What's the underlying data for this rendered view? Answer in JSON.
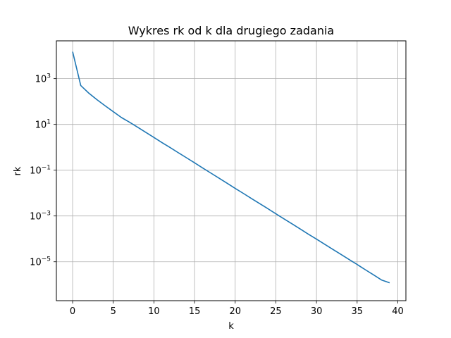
{
  "chart_data": {
    "type": "line",
    "title": "Wykres rk od k dla drugiego zadania",
    "xlabel": "k",
    "ylabel": "rk",
    "x_scale": "linear",
    "y_scale": "log",
    "grid": true,
    "xlim": [
      -2,
      41
    ],
    "ylim_log10": [
      -6.7,
      4.65
    ],
    "x_ticks": [
      {
        "value": 0,
        "label": "0"
      },
      {
        "value": 5,
        "label": "5"
      },
      {
        "value": 10,
        "label": "10"
      },
      {
        "value": 15,
        "label": "15"
      },
      {
        "value": 20,
        "label": "20"
      },
      {
        "value": 25,
        "label": "25"
      },
      {
        "value": 30,
        "label": "30"
      },
      {
        "value": 35,
        "label": "35"
      },
      {
        "value": 40,
        "label": "40"
      }
    ],
    "y_ticks": [
      {
        "exp": 3,
        "base": "10",
        "sup": "3"
      },
      {
        "exp": 1,
        "base": "10",
        "sup": "1"
      },
      {
        "exp": -1,
        "base": "10",
        "sup": "−1"
      },
      {
        "exp": -3,
        "base": "10",
        "sup": "−3"
      },
      {
        "exp": -5,
        "base": "10",
        "sup": "−5"
      }
    ],
    "series": [
      {
        "color": "#1f77b4",
        "x": [
          0,
          1,
          2,
          3,
          4,
          5,
          6,
          7,
          8,
          9,
          10,
          11,
          12,
          13,
          14,
          15,
          16,
          17,
          18,
          19,
          20,
          21,
          22,
          23,
          24,
          25,
          26,
          27,
          28,
          29,
          30,
          31,
          32,
          33,
          34,
          35,
          36,
          37,
          38,
          39
        ],
        "y": [
          15000,
          500,
          230,
          120,
          65,
          36,
          20,
          12.5,
          7.5,
          4.5,
          2.7,
          1.6,
          0.97,
          0.58,
          0.35,
          0.21,
          0.125,
          0.075,
          0.045,
          0.027,
          0.016,
          0.0097,
          0.0058,
          0.0035,
          0.0021,
          0.00125,
          0.00075,
          0.00045,
          0.00027,
          0.00016,
          9.75e-05,
          5.85e-05,
          3.5e-05,
          2.11e-05,
          1.26e-05,
          7.6e-06,
          4.5e-06,
          2.7e-06,
          1.6e-06,
          1.2e-06
        ]
      }
    ]
  }
}
